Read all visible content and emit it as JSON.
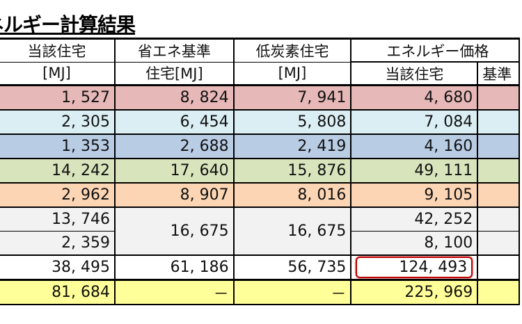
{
  "title": "ネルギー計算結果",
  "headers": {
    "current": "当該住宅",
    "current_unit": "[MJ]",
    "standard": "省エネ基準",
    "standard_unit": "住宅[MJ]",
    "lowcarbon": "低炭素住宅",
    "lowcarbon_unit": "[MJ]",
    "price_group": "エネルギー価格",
    "price_current": "当該住宅",
    "price_standard": "基準"
  },
  "rows": [
    {
      "color": "#e6b8b7",
      "current": "1, 527",
      "standard": "8, 824",
      "lowcarbon": "7, 941",
      "price": "4, 680"
    },
    {
      "color": "#daeef3",
      "current": "2, 305",
      "standard": "6, 454",
      "lowcarbon": "5, 808",
      "price": "7, 084"
    },
    {
      "color": "#b8cce4",
      "current": "1, 353",
      "standard": "2, 688",
      "lowcarbon": "2, 419",
      "price": "4, 160"
    },
    {
      "color": "#d8e4bc",
      "current": "14, 242",
      "standard": "17, 640",
      "lowcarbon": "15, 876",
      "price": "49, 111"
    },
    {
      "color": "#fcd5b4",
      "current": "2, 962",
      "standard": "8, 907",
      "lowcarbon": "8, 016",
      "price": "9, 105"
    },
    {
      "color": "#f2f2f2",
      "current": "13, 746",
      "standard": "16, 675",
      "lowcarbon": "16, 675",
      "price": "42, 252"
    },
    {
      "color": "#f2f2f2",
      "current": "2, 359",
      "price": "8, 100"
    },
    {
      "color": "#ffffff",
      "current": "38, 495",
      "standard": "61, 186",
      "lowcarbon": "56, 735",
      "price": "124, 493"
    },
    {
      "color": "#ffff99",
      "current": "81, 684",
      "standard": "－",
      "lowcarbon": "－",
      "price": "225, 969"
    }
  ],
  "highlight_color": "#c00000"
}
